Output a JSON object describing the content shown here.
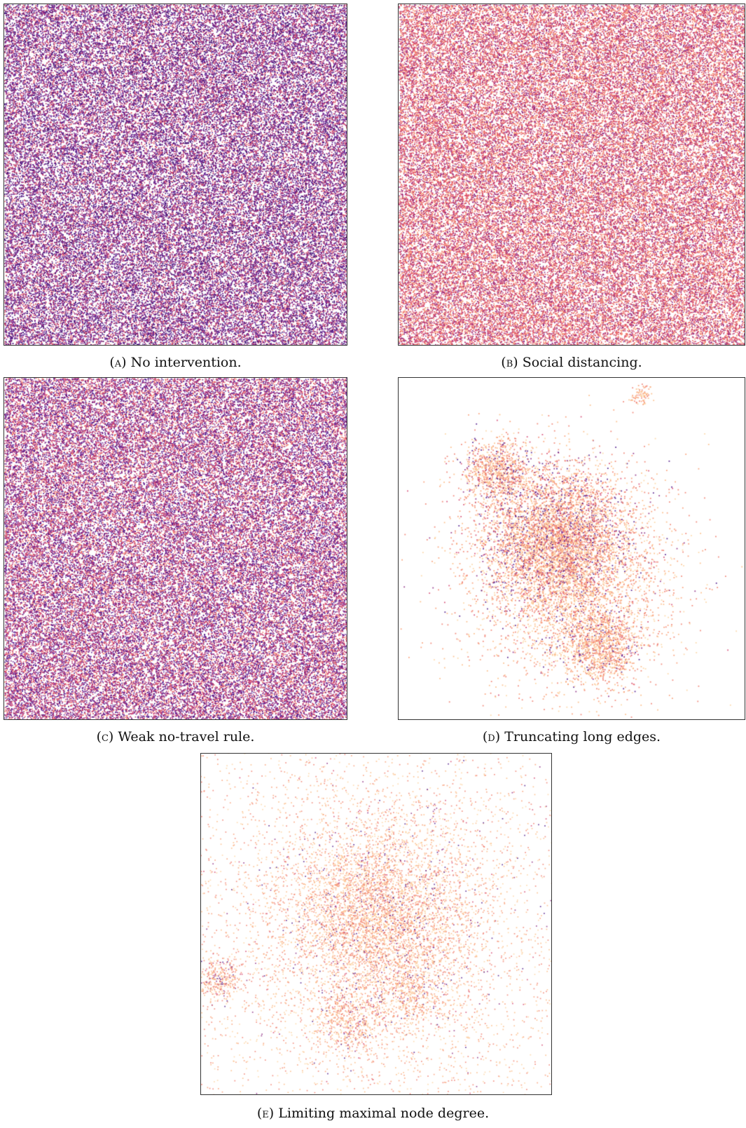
{
  "panels": [
    {
      "id": "a",
      "tag": "(a)",
      "caption": "No intervention.",
      "pattern": "dense",
      "palette": "purple"
    },
    {
      "id": "b",
      "tag": "(b)",
      "caption": "Social distancing.",
      "pattern": "dense",
      "palette": "pink"
    },
    {
      "id": "c",
      "tag": "(c)",
      "caption": "Weak no-travel rule.",
      "pattern": "dense",
      "palette": "mixed"
    },
    {
      "id": "d",
      "tag": "(d)",
      "caption": "Truncating long edges.",
      "pattern": "clustered",
      "palette": "light"
    },
    {
      "id": "e",
      "tag": "(e)",
      "caption": "Limiting maximal node degree.",
      "pattern": "scattered",
      "palette": "light"
    }
  ],
  "colors": {
    "purple": [
      "#3b0f70",
      "#5a1a8c",
      "#6b2a9a",
      "#8c2981",
      "#b73779",
      "#e05a6a"
    ],
    "pink": [
      "#8c2981",
      "#b73779",
      "#d3436e",
      "#e8606a",
      "#f07a6a",
      "#f99a70"
    ],
    "mixed": [
      "#4a1186",
      "#6b2a9a",
      "#8c2981",
      "#b73779",
      "#d3436e",
      "#f07a6a"
    ],
    "light": [
      "#fcd3a0",
      "#fbb880",
      "#f99a70",
      "#f07a6a",
      "#d3436e",
      "#8c2981",
      "#4a1186"
    ]
  }
}
